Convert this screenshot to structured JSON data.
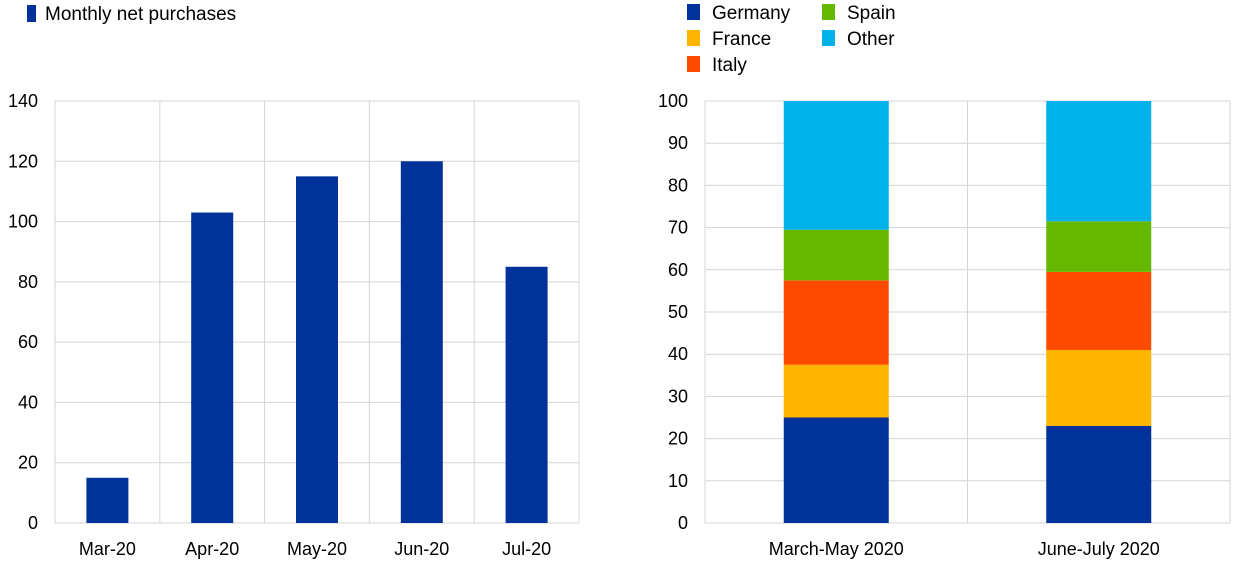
{
  "chart_data": [
    {
      "type": "bar",
      "legend": [
        {
          "name": "Monthly net purchases",
          "color": "#003299"
        }
      ],
      "categories": [
        "Mar-20",
        "Apr-20",
        "May-20",
        "Jun-20",
        "Jul-20"
      ],
      "series": [
        {
          "name": "Monthly net purchases",
          "values": [
            15,
            103,
            115,
            120,
            85
          ],
          "color": "#003299"
        }
      ],
      "ylim": [
        0,
        140
      ],
      "yticks": [
        "0",
        "20",
        "40",
        "60",
        "80",
        "100",
        "120",
        "140"
      ],
      "grid": true,
      "legend_position": "top-left"
    },
    {
      "type": "bar",
      "stacked": true,
      "categories": [
        "March-May 2020",
        "June-July 2020"
      ],
      "series": [
        {
          "name": "Germany",
          "values": [
            25,
            23
          ],
          "color": "#003299"
        },
        {
          "name": "France",
          "values": [
            12.5,
            18
          ],
          "color": "#FFB400"
        },
        {
          "name": "Italy",
          "values": [
            20,
            18.5
          ],
          "color": "#FF4B00"
        },
        {
          "name": "Spain",
          "values": [
            12,
            12
          ],
          "color": "#65B800"
        },
        {
          "name": "Other",
          "values": [
            30.5,
            28.5
          ],
          "color": "#00B1EA"
        }
      ],
      "legend_order": [
        "Germany",
        "Spain",
        "France",
        "Other",
        "Italy"
      ],
      "ylim": [
        0,
        100
      ],
      "yticks": [
        "0",
        "10",
        "20",
        "30",
        "40",
        "50",
        "60",
        "70",
        "80",
        "90",
        "100"
      ],
      "grid": true,
      "legend_position": "top-left"
    }
  ]
}
